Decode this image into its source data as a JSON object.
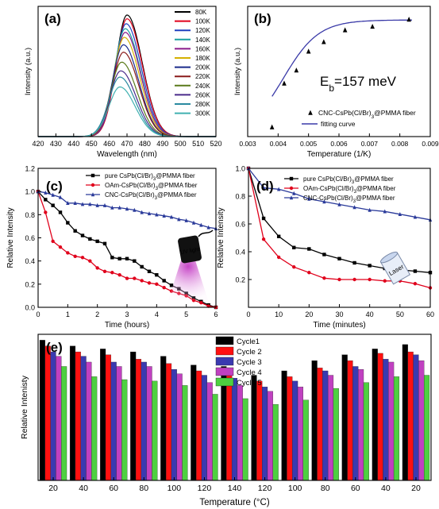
{
  "chart_data": [
    {
      "id": "a",
      "panel_label": "(a)",
      "type": "line",
      "xlabel": "Wavelength (nm)",
      "ylabel": "Intensity (a.u.)",
      "xlim": [
        420,
        520
      ],
      "x_ticks": [
        "420",
        "430",
        "440",
        "450",
        "460",
        "470",
        "480",
        "490",
        "500",
        "510",
        "520"
      ],
      "ylim": [
        0,
        1.05
      ],
      "series": [
        {
          "name": "80K",
          "color": "#000000",
          "peak": 470,
          "amplitude": 0.98
        },
        {
          "name": "100K",
          "color": "#e0001b",
          "peak": 470,
          "amplitude": 0.95
        },
        {
          "name": "120K",
          "color": "#2040c0",
          "peak": 469.5,
          "amplitude": 0.91
        },
        {
          "name": "140K",
          "color": "#1aa0a0",
          "peak": 469,
          "amplitude": 0.87
        },
        {
          "name": "160K",
          "color": "#8a1a8a",
          "peak": 469,
          "amplitude": 0.84
        },
        {
          "name": "180K",
          "color": "#d4b000",
          "peak": 468.5,
          "amplitude": 0.8
        },
        {
          "name": "200K",
          "color": "#1a2a8a",
          "peak": 468,
          "amplitude": 0.74
        },
        {
          "name": "220K",
          "color": "#8a1a1a",
          "peak": 468,
          "amplitude": 0.68
        },
        {
          "name": "240K",
          "color": "#5a7a1a",
          "peak": 467,
          "amplitude": 0.6
        },
        {
          "name": "260K",
          "color": "#4a2a8a",
          "peak": 466.5,
          "amplitude": 0.53
        },
        {
          "name": "280K",
          "color": "#2a8aa0",
          "peak": 466,
          "amplitude": 0.48
        },
        {
          "name": "300K",
          "color": "#40b0b0",
          "peak": 466,
          "amplitude": 0.4
        }
      ]
    },
    {
      "id": "b",
      "panel_label": "(b)",
      "type": "scatter",
      "xlabel": "Temperature (1/K)",
      "ylabel": "Intensity (a.u.)",
      "xlim": [
        0.003,
        0.009
      ],
      "x_ticks": [
        "0.003",
        "0.004",
        "0.005",
        "0.006",
        "0.007",
        "0.008",
        "0.009"
      ],
      "ylim": [
        0,
        1.1
      ],
      "annotation": "E",
      "annotation_sub": "b",
      "annotation_rest": "=157 meV",
      "series": [
        {
          "name": "CNC-CsPb(Cl/Br)",
          "name_sub": "3",
          "name_rest": "@PMMA fiber",
          "marker": "triangle",
          "color": "#000000",
          "x": [
            0.0038,
            0.0042,
            0.0046,
            0.005,
            0.0055,
            0.0062,
            0.0071,
            0.0083
          ],
          "y": [
            0.08,
            0.45,
            0.56,
            0.72,
            0.8,
            0.9,
            0.93,
            0.99
          ]
        },
        {
          "name": "fitting curve",
          "color": "#3a3aa8",
          "line": true,
          "E_b_meV": 157
        }
      ]
    },
    {
      "id": "c",
      "panel_label": "(c)",
      "type": "line",
      "xlabel": "Time (hours)",
      "ylabel": "Relative Intensity",
      "xlim": [
        0,
        6
      ],
      "x_ticks": [
        "0",
        "1",
        "2",
        "3",
        "4",
        "5",
        "6"
      ],
      "ylim": [
        0,
        1.2
      ],
      "y_ticks": [
        "0.0",
        "0.2",
        "0.4",
        "0.6",
        "0.8",
        "1.0",
        "1.2"
      ],
      "icon_text": "UV light",
      "series": [
        {
          "name": "pure CsPb(Cl/Br)",
          "name_sub": "3",
          "name_rest": "@PMMA fiber",
          "color": "#000000",
          "marker": "square",
          "x": [
            0,
            0.25,
            0.5,
            0.75,
            1,
            1.25,
            1.5,
            1.75,
            2,
            2.25,
            2.5,
            2.75,
            3,
            3.25,
            3.5,
            3.75,
            4,
            4.25,
            4.5,
            4.75,
            5,
            5.25,
            5.5,
            5.75,
            6
          ],
          "y": [
            1.0,
            0.93,
            0.88,
            0.82,
            0.73,
            0.66,
            0.62,
            0.59,
            0.57,
            0.55,
            0.43,
            0.42,
            0.42,
            0.4,
            0.35,
            0.31,
            0.28,
            0.23,
            0.19,
            0.16,
            0.12,
            0.08,
            0.05,
            0.02,
            0.0
          ]
        },
        {
          "name": "OAm-CsPb(Cl/Br)",
          "name_sub": "3",
          "name_rest": "@PMMA fiber",
          "color": "#e0001b",
          "marker": "circle",
          "x": [
            0,
            0.25,
            0.5,
            0.75,
            1,
            1.25,
            1.5,
            1.75,
            2,
            2.25,
            2.5,
            2.75,
            3,
            3.25,
            3.5,
            3.75,
            4,
            4.25,
            4.5,
            4.75,
            5,
            5.25,
            5.5,
            5.75,
            6
          ],
          "y": [
            1.0,
            0.82,
            0.57,
            0.52,
            0.47,
            0.44,
            0.43,
            0.4,
            0.34,
            0.31,
            0.3,
            0.28,
            0.25,
            0.25,
            0.23,
            0.21,
            0.2,
            0.17,
            0.14,
            0.12,
            0.1,
            0.06,
            0.04,
            0.01,
            0.0
          ]
        },
        {
          "name": "CNC-CsPb(Cl/Br)",
          "name_sub": "3",
          "name_rest": "@PMMA fiber",
          "color": "#2a3a9a",
          "marker": "triangle",
          "x": [
            0,
            0.25,
            0.5,
            0.75,
            1,
            1.25,
            1.5,
            1.75,
            2,
            2.25,
            2.5,
            2.75,
            3,
            3.25,
            3.5,
            3.75,
            4,
            4.25,
            4.5,
            4.75,
            5,
            5.25,
            5.5,
            5.75,
            6
          ],
          "y": [
            1.0,
            0.99,
            0.97,
            0.95,
            0.9,
            0.9,
            0.89,
            0.89,
            0.88,
            0.88,
            0.86,
            0.86,
            0.85,
            0.84,
            0.82,
            0.81,
            0.8,
            0.79,
            0.78,
            0.76,
            0.75,
            0.73,
            0.71,
            0.69,
            0.68
          ]
        }
      ]
    },
    {
      "id": "d",
      "panel_label": "(d)",
      "type": "line",
      "xlabel": "Time (minutes)",
      "ylabel": "Relative Intensity",
      "xlim": [
        0,
        60
      ],
      "x_ticks": [
        "0",
        "10",
        "20",
        "30",
        "40",
        "50",
        "60"
      ],
      "ylim": [
        0,
        1.0
      ],
      "y_ticks": [
        "0.2",
        "0.4",
        "0.6",
        "0.8",
        "1.0"
      ],
      "icon_text": "Laser",
      "series": [
        {
          "name": "pure CsPb(Cl/Br)",
          "name_sub": "3",
          "name_rest": "@PMMA fiber",
          "color": "#000000",
          "marker": "square",
          "x": [
            0,
            5,
            10,
            15,
            20,
            25,
            30,
            35,
            40,
            45,
            50,
            55,
            60
          ],
          "y": [
            1.0,
            0.64,
            0.51,
            0.43,
            0.42,
            0.38,
            0.35,
            0.32,
            0.3,
            0.28,
            0.27,
            0.26,
            0.25
          ]
        },
        {
          "name": "OAm-CsPb(Cl/Br)",
          "name_sub": "3",
          "name_rest": "@PMMA fiber",
          "color": "#e0001b",
          "marker": "circle",
          "x": [
            0,
            5,
            10,
            15,
            20,
            25,
            30,
            35,
            40,
            45,
            50,
            55,
            60
          ],
          "y": [
            1.0,
            0.49,
            0.36,
            0.29,
            0.25,
            0.21,
            0.2,
            0.2,
            0.2,
            0.19,
            0.19,
            0.17,
            0.14
          ]
        },
        {
          "name": "CNC-CsPb(Cl/Br)",
          "name_sub": "3",
          "name_rest": "@PMMA fiber",
          "color": "#2a3a9a",
          "marker": "triangle",
          "x": [
            0,
            5,
            10,
            15,
            20,
            25,
            30,
            35,
            40,
            45,
            50,
            55,
            60
          ],
          "y": [
            1.0,
            0.86,
            0.85,
            0.82,
            0.78,
            0.76,
            0.74,
            0.72,
            0.7,
            0.69,
            0.67,
            0.65,
            0.63
          ]
        }
      ]
    },
    {
      "id": "e",
      "panel_label": "(e)",
      "type": "bar",
      "xlabel": "Temperature (°C)",
      "ylabel": "Relative Intenisty",
      "ylim": [
        0,
        1.0
      ],
      "categories": [
        "20",
        "40",
        "60",
        "80",
        "100",
        "120",
        "140",
        "120",
        "100",
        "80",
        "60",
        "40",
        "20"
      ],
      "series": [
        {
          "name": "Cycle1",
          "color": "#000000",
          "values": [
            0.96,
            0.92,
            0.9,
            0.88,
            0.85,
            0.79,
            0.78,
            0.72,
            0.75,
            0.82,
            0.86,
            0.9,
            0.93
          ]
        },
        {
          "name": "Cycle 2",
          "color": "#ff1010",
          "values": [
            0.92,
            0.88,
            0.86,
            0.83,
            0.8,
            0.75,
            0.73,
            0.68,
            0.71,
            0.77,
            0.82,
            0.87,
            0.88
          ]
        },
        {
          "name": "Cycle 3",
          "color": "#3a3ab0",
          "values": [
            0.88,
            0.85,
            0.81,
            0.81,
            0.76,
            0.72,
            0.7,
            0.64,
            0.68,
            0.75,
            0.78,
            0.83,
            0.86
          ]
        },
        {
          "name": "Cycle 4",
          "color": "#c040c0",
          "values": [
            0.85,
            0.81,
            0.78,
            0.78,
            0.73,
            0.67,
            0.65,
            0.61,
            0.64,
            0.72,
            0.76,
            0.81,
            0.82
          ]
        },
        {
          "name": "Cycle 5",
          "color": "#4ed040",
          "values": [
            0.78,
            0.71,
            0.69,
            0.68,
            0.65,
            0.59,
            0.56,
            0.52,
            0.55,
            0.63,
            0.67,
            0.71,
            0.72
          ]
        }
      ]
    }
  ]
}
